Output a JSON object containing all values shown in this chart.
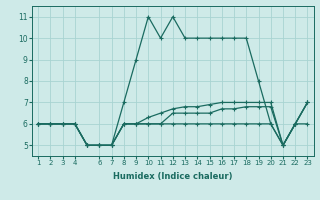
{
  "xlabel": "Humidex (Indice chaleur)",
  "ylabel": "",
  "bg_color": "#ceeae8",
  "grid_color": "#a8d4d2",
  "line_color": "#1a6b60",
  "xlim": [
    0.5,
    23.5
  ],
  "ylim": [
    4.5,
    11.5
  ],
  "yticks": [
    5,
    6,
    7,
    8,
    9,
    10,
    11
  ],
  "xticks": [
    1,
    2,
    3,
    4,
    6,
    7,
    8,
    9,
    10,
    11,
    12,
    13,
    14,
    15,
    16,
    17,
    18,
    19,
    20,
    21,
    22,
    23
  ],
  "hours": [
    1,
    2,
    3,
    4,
    5,
    6,
    7,
    8,
    9,
    10,
    11,
    12,
    13,
    14,
    15,
    16,
    17,
    18,
    19,
    20,
    21,
    22,
    23
  ],
  "line1": [
    6,
    6,
    6,
    6,
    5,
    5,
    5,
    7,
    9,
    11,
    10,
    11,
    10,
    10,
    10,
    10,
    10,
    10,
    8,
    6,
    5,
    6,
    7
  ],
  "line2": [
    6,
    6,
    6,
    6,
    5,
    5,
    5,
    6,
    6,
    6,
    6,
    6,
    6,
    6,
    6,
    6,
    6,
    6,
    6,
    6,
    5,
    6,
    6
  ],
  "line3": [
    6,
    6,
    6,
    6,
    5,
    5,
    5,
    6,
    6,
    6,
    6,
    6.5,
    6.5,
    6.5,
    6.5,
    6.7,
    6.7,
    6.8,
    6.8,
    6.8,
    5,
    6,
    7
  ],
  "line4": [
    6,
    6,
    6,
    6,
    5,
    5,
    5,
    6,
    6,
    6.3,
    6.5,
    6.7,
    6.8,
    6.8,
    6.9,
    7.0,
    7.0,
    7.0,
    7.0,
    7.0,
    5,
    6,
    7
  ]
}
